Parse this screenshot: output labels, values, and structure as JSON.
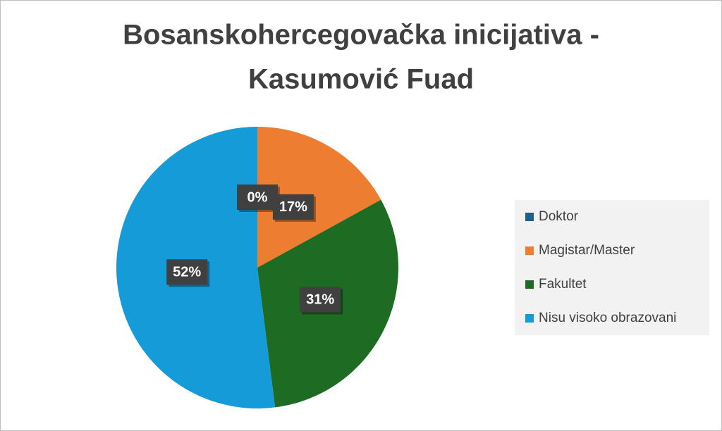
{
  "chart_data": {
    "type": "pie",
    "title": [
      "Bosanskohercegovačka inicijativa -",
      "Kasumović Fuad"
    ],
    "categories": [
      "Doktor",
      "Magistar/Master",
      "Fakultet",
      "Nisu visoko obrazovani"
    ],
    "values": [
      0,
      17,
      31,
      52
    ],
    "value_labels": [
      "0%",
      "17%",
      "31%",
      "52%"
    ],
    "colors": [
      "#1f5f8b",
      "#ed7d31",
      "#1e6b24",
      "#159bd7"
    ],
    "legend": "right"
  }
}
